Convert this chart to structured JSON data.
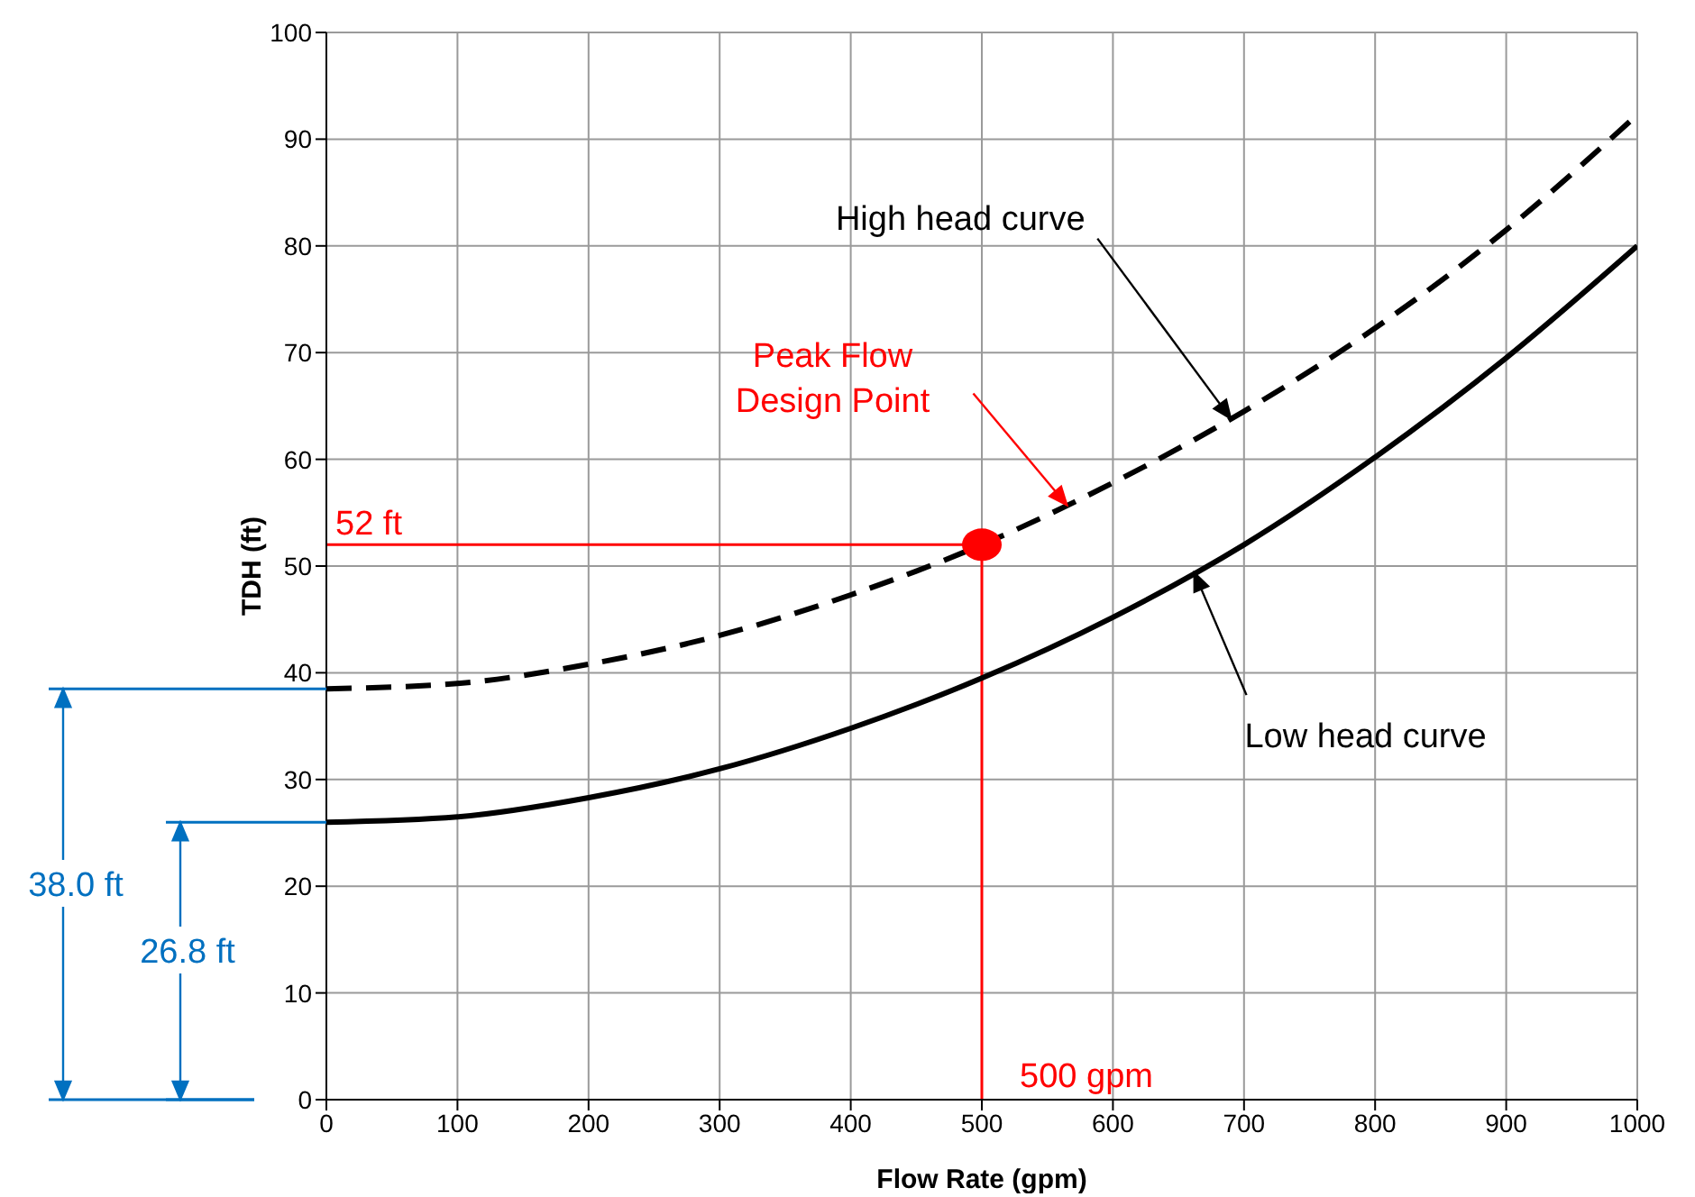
{
  "chart_data": {
    "type": "line",
    "xlabel": "Flow Rate (gpm)",
    "ylabel": "TDH (ft)",
    "x": [
      0,
      100,
      200,
      300,
      400,
      500,
      600,
      700,
      800,
      900,
      1000
    ],
    "series": [
      {
        "color": "#000000",
        "line_style": "dashed",
        "values": [
          38.5,
          39,
          40.8,
          43.5,
          47.3,
          52,
          57.8,
          64.5,
          72.3,
          81.5,
          92.3
        ]
      },
      {
        "color": "#000000",
        "line_style": "solid",
        "values": [
          26,
          26.5,
          28.3,
          31,
          34.8,
          39.5,
          45.2,
          52,
          60.2,
          69.5,
          80
        ]
      },
      {
        "type": "scatter",
        "color": "#ff0000",
        "x": [
          500
        ],
        "values": [
          52
        ]
      }
    ],
    "xlim": [
      0,
      1000
    ],
    "xticks": [
      0,
      100,
      200,
      300,
      400,
      500,
      600,
      700,
      800,
      900,
      1000
    ],
    "ylim": [
      0,
      100
    ],
    "yticks": [
      0,
      10,
      20,
      30,
      40,
      50,
      60,
      70,
      80,
      90,
      100
    ],
    "grid": true,
    "ref_lines": [
      {
        "axis": "y",
        "value": 52,
        "label": "52 ft",
        "color": "#ff0000"
      },
      {
        "axis": "x",
        "value": 500,
        "label": "500 gpm",
        "color": "#ff0000"
      }
    ],
    "annotations": [
      {
        "text": "High head curve",
        "x": 690,
        "y": 63.8
      },
      {
        "text": "Peak Flow Design Point",
        "x": 565,
        "y": 55.7
      },
      {
        "text": "Low head curve",
        "x": 662,
        "y": 49.4
      },
      "38.0 ft",
      "26.8 ft"
    ]
  }
}
